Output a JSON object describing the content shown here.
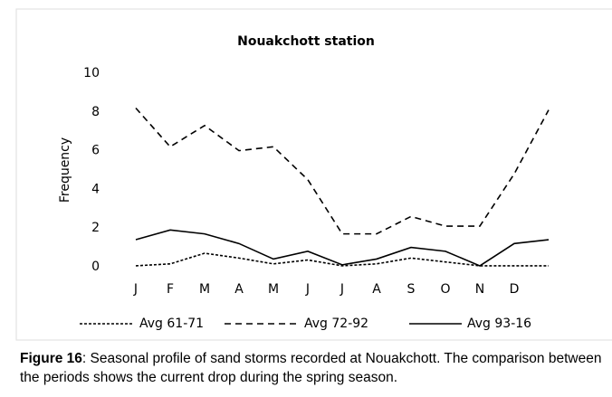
{
  "chart_data": {
    "type": "line",
    "title": "Nouakchott station",
    "y_label": "Frequency",
    "categories": [
      "J",
      "F",
      "M",
      "A",
      "M",
      "J",
      "J",
      "A",
      "S",
      "O",
      "N",
      "D",
      null
    ],
    "series": [
      {
        "name": "Avg 61-71",
        "color": "#000000",
        "dash": "dotted",
        "values": [
          0.05,
          0.15,
          0.7,
          0.45,
          0.15,
          0.35,
          0.05,
          0.15,
          0.45,
          0.25,
          0.05,
          0.05,
          0.05
        ]
      },
      {
        "name": "Avg 72-92",
        "color": "#000000",
        "dash": "dashed",
        "values": [
          8.2,
          6.2,
          7.3,
          6.0,
          6.2,
          4.5,
          1.7,
          1.7,
          2.6,
          2.1,
          2.1,
          4.8,
          8.1
        ]
      },
      {
        "name": "Avg 93-16",
        "color": "#000000",
        "dash": "solid",
        "values": [
          1.4,
          1.9,
          1.7,
          1.2,
          0.4,
          0.8,
          0.1,
          0.4,
          1.0,
          0.8,
          0.05,
          1.2,
          1.4
        ]
      }
    ],
    "ylim": [
      0,
      10
    ],
    "yticks": [
      0,
      2,
      4,
      6,
      8,
      10
    ],
    "grid": false
  },
  "caption": {
    "label": "Figure 16",
    "text": ": Seasonal profile of sand storms recorded at Nouakchott. The comparison between the periods shows the current drop during the spring season."
  }
}
